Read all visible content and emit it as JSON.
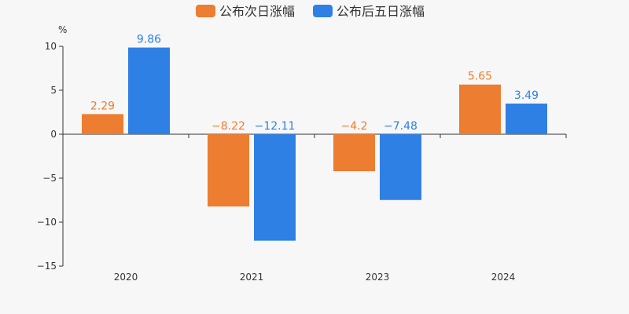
{
  "chart_data": {
    "type": "bar",
    "unit": "%",
    "categories": [
      "2020",
      "2021",
      "2023",
      "2024"
    ],
    "series": [
      {
        "name": "公布次日涨幅",
        "color": "#ed7d31",
        "values": [
          2.29,
          -8.22,
          -4.2,
          5.65
        ],
        "labels": [
          "2.29",
          "−8.22",
          "−4.2",
          "5.65"
        ]
      },
      {
        "name": "公布后五日涨幅",
        "color": "#2f80e4",
        "values": [
          9.86,
          -12.11,
          -7.48,
          3.49
        ],
        "labels": [
          "9.86",
          "−12.11",
          "−7.48",
          "3.49"
        ]
      }
    ],
    "ylim": [
      -15,
      10
    ],
    "yticks": [
      10,
      5,
      0,
      -5,
      -10,
      -15
    ],
    "ytick_labels": [
      "10",
      "5",
      "0",
      "−5",
      "−10",
      "−15"
    ],
    "grid": false,
    "legend_position": "top-center"
  }
}
